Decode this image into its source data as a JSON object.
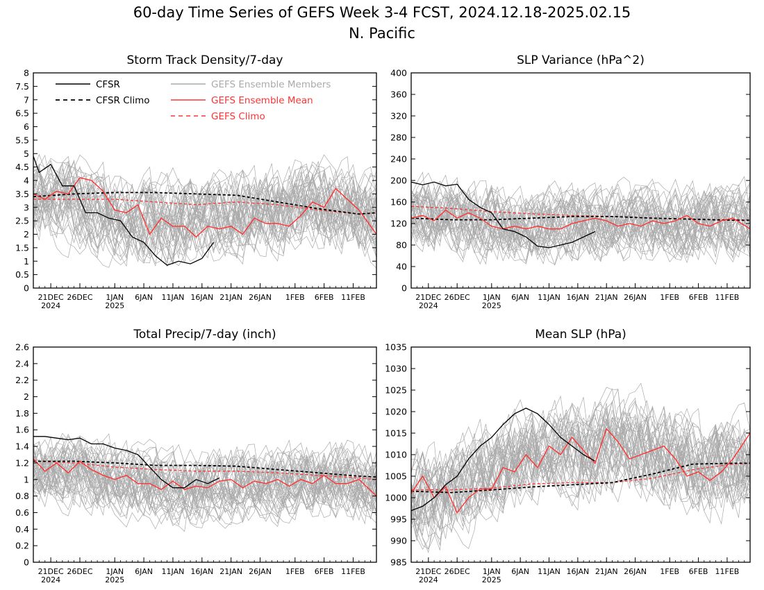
{
  "title": "60-day Time Series of GEFS Week 3-4 FCST, 2024.12.18-2025.02.15",
  "subtitle": "N. Pacific",
  "legend": {
    "placement": "top-left of first panel",
    "cfsr": "CFSR",
    "cfsr_climo": "CFSR Climo",
    "gefs_members": "GEFS Ensemble Members",
    "gefs_mean": "GEFS Ensemble Mean",
    "gefs_climo": "GEFS Climo"
  },
  "colors": {
    "cfsr": "#000000",
    "cfsr_climo": "#000000",
    "gefs_members": "#aaaaaa",
    "gefs_mean": "#ff3333",
    "gefs_climo": "#ff3333"
  },
  "chart_data": [
    {
      "type": "line",
      "title": "Storm Track Density/7-day",
      "ylim": [
        0,
        8
      ],
      "yticks": [
        "0",
        "0.5",
        "1",
        "1.5",
        "2",
        "2.5",
        "3",
        "3.5",
        "4",
        "4.5",
        "5",
        "5.5",
        "6",
        "6.5",
        "7",
        "7.5",
        "8"
      ],
      "xlim": [
        "2024-12-18",
        "2025-02-15"
      ],
      "xticks": [
        "21DEC",
        "26DEC",
        "1JAN",
        "6JAN",
        "11JAN",
        "16JAN",
        "21JAN",
        "26JAN",
        "1FEB",
        "6FEB",
        "11FEB"
      ],
      "xtick_years": [
        "2024",
        "2025"
      ],
      "grid": false,
      "members_band": {
        "center": [
          3.3,
          3.2,
          2.8,
          2.4,
          2.5,
          2.6,
          2.9,
          3.0,
          3.1,
          3.0,
          2.6
        ],
        "spread": 1.3
      },
      "series": [
        {
          "name": "CFSR",
          "style": "solid-black",
          "x": [
            "2024-12-18",
            "2024-12-19",
            "2024-12-21",
            "2024-12-23",
            "2024-12-25",
            "2024-12-27",
            "2024-12-29",
            "2024-12-31",
            "2025-01-02",
            "2025-01-04",
            "2025-01-06",
            "2025-01-08",
            "2025-01-10",
            "2025-01-12",
            "2025-01-14",
            "2025-01-16",
            "2025-01-18"
          ],
          "y": [
            4.9,
            4.3,
            4.6,
            3.8,
            3.8,
            2.8,
            2.8,
            2.6,
            2.5,
            1.9,
            1.7,
            1.2,
            0.85,
            1.0,
            0.9,
            1.1,
            1.7
          ]
        },
        {
          "name": "CFSR Climo",
          "style": "dashed-black",
          "x": [
            "2024-12-18",
            "2024-12-25",
            "2025-01-01",
            "2025-01-08",
            "2025-01-15",
            "2025-01-22",
            "2025-01-29",
            "2025-02-05",
            "2025-02-12",
            "2025-02-15"
          ],
          "y": [
            3.4,
            3.5,
            3.55,
            3.55,
            3.5,
            3.45,
            3.2,
            2.95,
            2.75,
            2.8
          ]
        },
        {
          "name": "GEFS Ensemble Mean",
          "style": "solid-red",
          "x": [
            "2024-12-18",
            "2024-12-20",
            "2024-12-22",
            "2024-12-24",
            "2024-12-26",
            "2024-12-28",
            "2024-12-30",
            "2025-01-01",
            "2025-01-03",
            "2025-01-05",
            "2025-01-07",
            "2025-01-09",
            "2025-01-11",
            "2025-01-13",
            "2025-01-15",
            "2025-01-17",
            "2025-01-19",
            "2025-01-21",
            "2025-01-23",
            "2025-01-25",
            "2025-01-27",
            "2025-01-29",
            "2025-01-31",
            "2025-02-02",
            "2025-02-04",
            "2025-02-06",
            "2025-02-08",
            "2025-02-10",
            "2025-02-12",
            "2025-02-15"
          ],
          "y": [
            3.5,
            3.3,
            3.6,
            3.5,
            4.1,
            4.0,
            3.6,
            2.9,
            2.8,
            3.1,
            2.0,
            2.6,
            2.3,
            2.3,
            1.9,
            2.3,
            2.2,
            2.3,
            2.0,
            2.6,
            2.4,
            2.4,
            2.3,
            2.7,
            3.2,
            3.0,
            3.7,
            3.3,
            2.9,
            2.0
          ]
        },
        {
          "name": "GEFS Climo",
          "style": "dashed-red",
          "x": [
            "2024-12-18",
            "2024-12-25",
            "2025-01-01",
            "2025-01-08",
            "2025-01-15",
            "2025-01-22",
            "2025-01-29",
            "2025-02-05",
            "2025-02-12",
            "2025-02-15"
          ],
          "y": [
            3.3,
            3.3,
            3.3,
            3.2,
            3.1,
            3.2,
            3.1,
            2.9,
            2.75,
            2.8
          ]
        }
      ]
    },
    {
      "type": "line",
      "title": "SLP Variance (hPa^2)",
      "ylim": [
        0,
        400
      ],
      "yticks": [
        "0",
        "40",
        "80",
        "120",
        "160",
        "200",
        "240",
        "280",
        "320",
        "360",
        "400"
      ],
      "xlim": [
        "2024-12-18",
        "2025-02-15"
      ],
      "xticks": [
        "21DEC",
        "26DEC",
        "1JAN",
        "6JAN",
        "11JAN",
        "16JAN",
        "21JAN",
        "26JAN",
        "1FEB",
        "6FEB",
        "11FEB"
      ],
      "xtick_years": [
        "2024",
        "2025"
      ],
      "grid": false,
      "members_band": {
        "center": [
          135,
          135,
          125,
          115,
          115,
          120,
          120,
          120,
          125,
          120,
          120
        ],
        "spread": 55
      },
      "series": [
        {
          "name": "CFSR",
          "x": [
            "2024-12-18",
            "2024-12-20",
            "2024-12-22",
            "2024-12-24",
            "2024-12-26",
            "2024-12-28",
            "2024-12-30",
            "2025-01-01",
            "2025-01-03",
            "2025-01-05",
            "2025-01-07",
            "2025-01-09",
            "2025-01-11",
            "2025-01-13",
            "2025-01-15",
            "2025-01-17",
            "2025-01-19"
          ],
          "y": [
            197,
            192,
            197,
            190,
            193,
            165,
            150,
            140,
            110,
            105,
            95,
            78,
            75,
            80,
            85,
            95,
            105
          ]
        },
        {
          "name": "CFSR Climo",
          "x": [
            "2024-12-18",
            "2024-12-25",
            "2025-01-01",
            "2025-01-08",
            "2025-01-15",
            "2025-01-22",
            "2025-01-29",
            "2025-02-05",
            "2025-02-12",
            "2025-02-15"
          ],
          "y": [
            130,
            127,
            127,
            130,
            133,
            133,
            130,
            128,
            126,
            126
          ]
        },
        {
          "name": "GEFS Ensemble Mean",
          "x": [
            "2024-12-18",
            "2024-12-20",
            "2024-12-22",
            "2024-12-24",
            "2024-12-26",
            "2024-12-28",
            "2024-12-30",
            "2025-01-01",
            "2025-01-03",
            "2025-01-05",
            "2025-01-07",
            "2025-01-09",
            "2025-01-11",
            "2025-01-13",
            "2025-01-15",
            "2025-01-17",
            "2025-01-19",
            "2025-01-21",
            "2025-01-23",
            "2025-01-25",
            "2025-01-27",
            "2025-01-29",
            "2025-01-31",
            "2025-02-02",
            "2025-02-04",
            "2025-02-06",
            "2025-02-08",
            "2025-02-10",
            "2025-02-12",
            "2025-02-15"
          ],
          "y": [
            130,
            135,
            125,
            145,
            130,
            140,
            130,
            115,
            110,
            115,
            110,
            115,
            110,
            110,
            120,
            125,
            130,
            125,
            115,
            120,
            115,
            125,
            120,
            125,
            135,
            120,
            115,
            125,
            130,
            110
          ]
        },
        {
          "name": "GEFS Climo",
          "x": [
            "2024-12-18",
            "2024-12-25",
            "2025-01-01",
            "2025-01-08",
            "2025-01-15",
            "2025-01-22",
            "2025-01-29",
            "2025-02-05",
            "2025-02-12",
            "2025-02-15"
          ],
          "y": [
            152,
            148,
            142,
            138,
            135,
            133,
            130,
            128,
            127,
            127
          ]
        }
      ]
    },
    {
      "type": "line",
      "title": "Total Precip/7-day (inch)",
      "ylim": [
        0,
        2.6
      ],
      "yticks": [
        "0",
        "0.2",
        "0.4",
        "0.6",
        "0.8",
        "1",
        "1.2",
        "1.4",
        "1.6",
        "1.8",
        "2",
        "2.2",
        "2.4",
        "2.6"
      ],
      "xlim": [
        "2024-12-18",
        "2025-02-15"
      ],
      "xticks": [
        "21DEC",
        "26DEC",
        "1JAN",
        "6JAN",
        "11JAN",
        "16JAN",
        "21JAN",
        "26JAN",
        "1FEB",
        "6FEB",
        "11FEB"
      ],
      "xtick_years": [
        "2024",
        "2025"
      ],
      "grid": false,
      "members_band": {
        "center": [
          1.15,
          1.1,
          1.05,
          0.95,
          0.9,
          0.9,
          0.95,
          0.95,
          1.0,
          1.0,
          0.95
        ],
        "spread": 0.35
      },
      "series": [
        {
          "name": "CFSR",
          "x": [
            "2024-12-18",
            "2024-12-20",
            "2024-12-22",
            "2024-12-24",
            "2024-12-26",
            "2024-12-28",
            "2024-12-30",
            "2025-01-01",
            "2025-01-03",
            "2025-01-05",
            "2025-01-07",
            "2025-01-09",
            "2025-01-11",
            "2025-01-13",
            "2025-01-15",
            "2025-01-17",
            "2025-01-19"
          ],
          "y": [
            1.52,
            1.52,
            1.5,
            1.48,
            1.5,
            1.43,
            1.43,
            1.38,
            1.35,
            1.3,
            1.15,
            1.0,
            0.9,
            0.9,
            1.0,
            0.95,
            1.02
          ]
        },
        {
          "name": "CFSR Climo",
          "x": [
            "2024-12-18",
            "2024-12-25",
            "2025-01-01",
            "2025-01-08",
            "2025-01-15",
            "2025-01-22",
            "2025-01-29",
            "2025-02-05",
            "2025-02-12",
            "2025-02-15"
          ],
          "y": [
            1.22,
            1.22,
            1.2,
            1.17,
            1.17,
            1.16,
            1.12,
            1.08,
            1.04,
            1.03
          ]
        },
        {
          "name": "GEFS Ensemble Mean",
          "x": [
            "2024-12-18",
            "2024-12-20",
            "2024-12-22",
            "2024-12-24",
            "2024-12-26",
            "2024-12-28",
            "2024-12-30",
            "2025-01-01",
            "2025-01-03",
            "2025-01-05",
            "2025-01-07",
            "2025-01-09",
            "2025-01-11",
            "2025-01-13",
            "2025-01-15",
            "2025-01-17",
            "2025-01-19",
            "2025-01-21",
            "2025-01-23",
            "2025-01-25",
            "2025-01-27",
            "2025-01-29",
            "2025-01-31",
            "2025-02-02",
            "2025-02-04",
            "2025-02-06",
            "2025-02-08",
            "2025-02-10",
            "2025-02-12",
            "2025-02-15"
          ],
          "y": [
            1.25,
            1.1,
            1.2,
            1.08,
            1.22,
            1.12,
            1.05,
            1.0,
            1.05,
            0.95,
            0.95,
            0.88,
            0.98,
            0.88,
            0.92,
            0.9,
            0.98,
            1.0,
            0.9,
            0.98,
            0.95,
            1.0,
            0.92,
            1.0,
            0.95,
            1.05,
            0.95,
            0.95,
            1.0,
            0.8
          ]
        },
        {
          "name": "GEFS Climo",
          "x": [
            "2024-12-18",
            "2024-12-25",
            "2025-01-01",
            "2025-01-08",
            "2025-01-15",
            "2025-01-22",
            "2025-01-29",
            "2025-02-05",
            "2025-02-12",
            "2025-02-15"
          ],
          "y": [
            1.22,
            1.2,
            1.15,
            1.12,
            1.1,
            1.1,
            1.08,
            1.05,
            1.02,
            1.0
          ]
        }
      ]
    },
    {
      "type": "line",
      "title": "Mean SLP (hPa)",
      "ylim": [
        985,
        1035
      ],
      "yticks": [
        "985",
        "990",
        "995",
        "1000",
        "1005",
        "1010",
        "1015",
        "1020",
        "1025",
        "1030",
        "1035"
      ],
      "xlim": [
        "2024-12-18",
        "2025-02-15"
      ],
      "xticks": [
        "21DEC",
        "26DEC",
        "1JAN",
        "6JAN",
        "11JAN",
        "16JAN",
        "21JAN",
        "26JAN",
        "1FEB",
        "6FEB",
        "11FEB"
      ],
      "xtick_years": [
        "2024",
        "2025"
      ],
      "grid": false,
      "members_band": {
        "center": [
          1001,
          1000,
          1005,
          1008,
          1010,
          1011,
          1012,
          1011,
          1009,
          1007,
          1007
        ],
        "spread": 9
      },
      "series": [
        {
          "name": "CFSR",
          "x": [
            "2024-12-18",
            "2024-12-20",
            "2024-12-22",
            "2024-12-24",
            "2024-12-26",
            "2024-12-28",
            "2024-12-30",
            "2025-01-01",
            "2025-01-03",
            "2025-01-05",
            "2025-01-07",
            "2025-01-09",
            "2025-01-11",
            "2025-01-13",
            "2025-01-15",
            "2025-01-17",
            "2025-01-19"
          ],
          "y": [
            997,
            998,
            1000,
            1003,
            1005,
            1009,
            1012,
            1014,
            1017,
            1019.5,
            1020.8,
            1019.5,
            1017,
            1014,
            1012,
            1010,
            1008.5
          ]
        },
        {
          "name": "CFSR Climo",
          "x": [
            "2024-12-18",
            "2024-12-25",
            "2025-01-01",
            "2025-01-08",
            "2025-01-15",
            "2025-01-22",
            "2025-01-29",
            "2025-02-05",
            "2025-02-12",
            "2025-02-15"
          ],
          "y": [
            1001.5,
            1001.2,
            1001.8,
            1002.5,
            1003,
            1003.5,
            1005.5,
            1007.8,
            1008,
            1008
          ]
        },
        {
          "name": "GEFS Ensemble Mean",
          "x": [
            "2024-12-18",
            "2024-12-20",
            "2024-12-22",
            "2024-12-24",
            "2024-12-26",
            "2024-12-28",
            "2024-12-30",
            "2025-01-01",
            "2025-01-03",
            "2025-01-05",
            "2025-01-07",
            "2025-01-09",
            "2025-01-11",
            "2025-01-13",
            "2025-01-15",
            "2025-01-17",
            "2025-01-19",
            "2025-01-21",
            "2025-01-23",
            "2025-01-25",
            "2025-01-27",
            "2025-01-29",
            "2025-01-31",
            "2025-02-02",
            "2025-02-04",
            "2025-02-06",
            "2025-02-08",
            "2025-02-10",
            "2025-02-12",
            "2025-02-15"
          ],
          "y": [
            1001,
            1005,
            1000,
            1002.5,
            996.5,
            1000,
            1002,
            1002,
            1007,
            1006,
            1010,
            1007,
            1012,
            1010,
            1014,
            1011,
            1008,
            1016,
            1013,
            1009,
            1010,
            1011,
            1012,
            1009,
            1005,
            1006,
            1004,
            1006,
            1009,
            1015
          ]
        },
        {
          "name": "GEFS Climo",
          "x": [
            "2024-12-18",
            "2024-12-25",
            "2025-01-01",
            "2025-01-08",
            "2025-01-15",
            "2025-01-22",
            "2025-01-29",
            "2025-02-05",
            "2025-02-12",
            "2025-02-15"
          ],
          "y": [
            1001.8,
            1001.8,
            1002.2,
            1003.2,
            1003.5,
            1003.5,
            1004.5,
            1006.5,
            1007.8,
            1008
          ]
        }
      ]
    }
  ]
}
